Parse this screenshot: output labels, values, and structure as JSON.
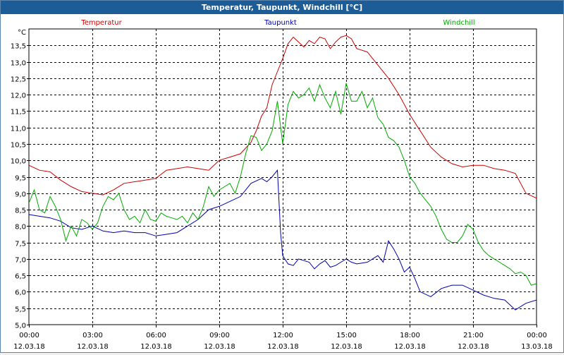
{
  "window": {
    "title": "Temperatur, Taupunkt, Windchill [°C]"
  },
  "chart_data": {
    "type": "line",
    "title": "Temperatur, Taupunkt, Windchill [°C]",
    "ylabel": "°C",
    "ylim": [
      5.0,
      14.0
    ],
    "xlim": [
      0,
      24
    ],
    "grid": true,
    "legend": "top",
    "yticks": [
      5.0,
      5.5,
      6.0,
      6.5,
      7.0,
      7.5,
      8.0,
      8.5,
      9.0,
      9.5,
      10.0,
      10.5,
      11.0,
      11.5,
      12.0,
      12.5,
      13.0,
      13.5
    ],
    "ytick_labels": [
      "5,0",
      "5,5",
      "6,0",
      "6,5",
      "7,0",
      "7,5",
      "8,0",
      "8,5",
      "9,0",
      "9,5",
      "10,0",
      "10,5",
      "11,0",
      "11,5",
      "12,0",
      "12,5",
      "13,0",
      "13,5"
    ],
    "xticks": [
      {
        "hour": 0,
        "time": "00:00",
        "date": "12.03.18"
      },
      {
        "hour": 3,
        "time": "03:00",
        "date": "12.03.18"
      },
      {
        "hour": 6,
        "time": "06:00",
        "date": "12.03.18"
      },
      {
        "hour": 9,
        "time": "09:00",
        "date": "12.03.18"
      },
      {
        "hour": 12,
        "time": "12:00",
        "date": "12.03.18"
      },
      {
        "hour": 15,
        "time": "15:00",
        "date": "12.03.18"
      },
      {
        "hour": 18,
        "time": "18:00",
        "date": "12.03.18"
      },
      {
        "hour": 21,
        "time": "21:00",
        "date": "12.03.18"
      },
      {
        "hour": 24,
        "time": "00:00",
        "date": "13.03.18"
      }
    ],
    "series": [
      {
        "name": "Temperatur",
        "color": "#cc0000",
        "x": [
          0,
          0.5,
          1,
          1.5,
          2,
          2.5,
          3,
          3.5,
          4,
          4.5,
          5,
          5.5,
          6,
          6.5,
          7,
          7.5,
          8,
          8.5,
          9,
          9.5,
          10,
          10.5,
          10.75,
          11,
          11.25,
          11.5,
          11.75,
          12,
          12.25,
          12.5,
          12.75,
          13,
          13.25,
          13.5,
          13.75,
          14,
          14.25,
          14.5,
          14.75,
          15,
          15.25,
          15.5,
          16,
          16.5,
          17,
          17.5,
          18,
          18.5,
          19,
          19.5,
          20,
          20.5,
          21,
          21.5,
          22,
          22.5,
          23,
          23.5,
          24
        ],
        "y": [
          9.85,
          9.7,
          9.65,
          9.4,
          9.2,
          9.05,
          9.0,
          8.95,
          9.1,
          9.3,
          9.35,
          9.4,
          9.45,
          9.7,
          9.75,
          9.8,
          9.75,
          9.7,
          10.0,
          10.1,
          10.2,
          10.55,
          10.9,
          11.35,
          11.6,
          12.3,
          12.7,
          13.1,
          13.55,
          13.75,
          13.6,
          13.45,
          13.65,
          13.55,
          13.75,
          13.7,
          13.4,
          13.6,
          13.75,
          13.8,
          13.7,
          13.4,
          13.3,
          12.9,
          12.5,
          12.0,
          11.4,
          10.9,
          10.4,
          10.1,
          9.9,
          9.8,
          9.85,
          9.85,
          9.75,
          9.7,
          9.6,
          9.0,
          8.85
        ]
      },
      {
        "name": "Taupunkt",
        "color": "#0000aa",
        "x": [
          0,
          0.5,
          1,
          1.5,
          2,
          2.5,
          3,
          3.5,
          4,
          4.5,
          5,
          5.5,
          6,
          6.5,
          7,
          7.5,
          8,
          8.5,
          9,
          9.5,
          10,
          10.5,
          11,
          11.25,
          11.5,
          11.75,
          11.9,
          12,
          12.25,
          12.5,
          12.75,
          13,
          13.25,
          13.5,
          13.75,
          14,
          14.25,
          14.5,
          14.75,
          15,
          15.25,
          15.5,
          16,
          16.5,
          16.75,
          17,
          17.25,
          17.5,
          17.75,
          18,
          18.25,
          18.5,
          19,
          19.5,
          20,
          20.5,
          21,
          21.5,
          22,
          22.5,
          23,
          23.5,
          24
        ],
        "y": [
          8.35,
          8.3,
          8.25,
          8.15,
          7.95,
          7.9,
          8.0,
          7.85,
          7.8,
          7.85,
          7.8,
          7.8,
          7.7,
          7.75,
          7.8,
          8.0,
          8.2,
          8.5,
          8.6,
          8.75,
          8.9,
          9.3,
          9.45,
          9.35,
          9.5,
          9.7,
          7.8,
          7.1,
          6.85,
          6.8,
          7.0,
          6.95,
          6.9,
          6.7,
          6.85,
          6.95,
          6.75,
          6.8,
          6.9,
          7.0,
          6.9,
          6.85,
          6.9,
          7.1,
          6.9,
          7.55,
          7.3,
          7.0,
          6.6,
          6.75,
          6.4,
          6.0,
          5.85,
          6.1,
          6.2,
          6.2,
          6.05,
          5.9,
          5.8,
          5.75,
          5.45,
          5.65,
          5.75
        ]
      },
      {
        "name": "Windchill",
        "color": "#00aa00",
        "x": [
          0,
          0.25,
          0.5,
          0.75,
          1,
          1.25,
          1.5,
          1.75,
          2,
          2.25,
          2.5,
          2.75,
          3,
          3.25,
          3.5,
          3.75,
          4,
          4.25,
          4.5,
          4.75,
          5,
          5.25,
          5.5,
          5.75,
          6,
          6.25,
          6.5,
          6.75,
          7,
          7.25,
          7.5,
          7.75,
          8,
          8.25,
          8.5,
          8.75,
          9,
          9.25,
          9.5,
          9.75,
          10,
          10.25,
          10.5,
          10.75,
          11,
          11.25,
          11.5,
          11.75,
          12,
          12.25,
          12.5,
          12.75,
          13,
          13.25,
          13.5,
          13.75,
          14,
          14.25,
          14.5,
          14.75,
          15,
          15.25,
          15.5,
          15.75,
          16,
          16.25,
          16.5,
          16.75,
          17,
          17.25,
          17.5,
          17.75,
          18,
          18.25,
          18.5,
          18.75,
          19,
          19.25,
          19.5,
          19.75,
          20,
          20.25,
          20.5,
          20.75,
          21,
          21.25,
          21.5,
          21.75,
          22,
          22.25,
          22.5,
          22.75,
          23,
          23.25,
          23.5,
          23.75,
          24
        ],
        "y": [
          8.7,
          9.1,
          8.5,
          8.4,
          8.9,
          8.6,
          8.2,
          7.55,
          8.0,
          7.7,
          8.2,
          8.1,
          7.9,
          8.1,
          8.6,
          8.9,
          8.8,
          9.0,
          8.5,
          8.2,
          8.3,
          8.1,
          8.5,
          8.2,
          8.15,
          8.4,
          8.3,
          8.25,
          8.2,
          8.3,
          8.1,
          8.4,
          8.2,
          8.6,
          9.2,
          8.9,
          9.1,
          9.2,
          9.3,
          9.0,
          9.5,
          10.2,
          10.75,
          10.7,
          10.3,
          10.5,
          10.9,
          11.8,
          10.5,
          11.7,
          12.1,
          11.9,
          12.0,
          12.2,
          11.8,
          12.3,
          11.9,
          11.6,
          12.1,
          11.4,
          12.35,
          11.8,
          11.8,
          12.1,
          11.6,
          11.9,
          11.3,
          11.1,
          10.7,
          10.6,
          10.4,
          10.0,
          9.5,
          9.3,
          9.0,
          8.8,
          8.6,
          8.3,
          7.9,
          7.6,
          7.5,
          7.5,
          7.7,
          8.05,
          7.9,
          7.5,
          7.25,
          7.1,
          7.0,
          6.9,
          6.8,
          6.7,
          6.55,
          6.6,
          6.5,
          6.2,
          6.25
        ]
      }
    ]
  }
}
